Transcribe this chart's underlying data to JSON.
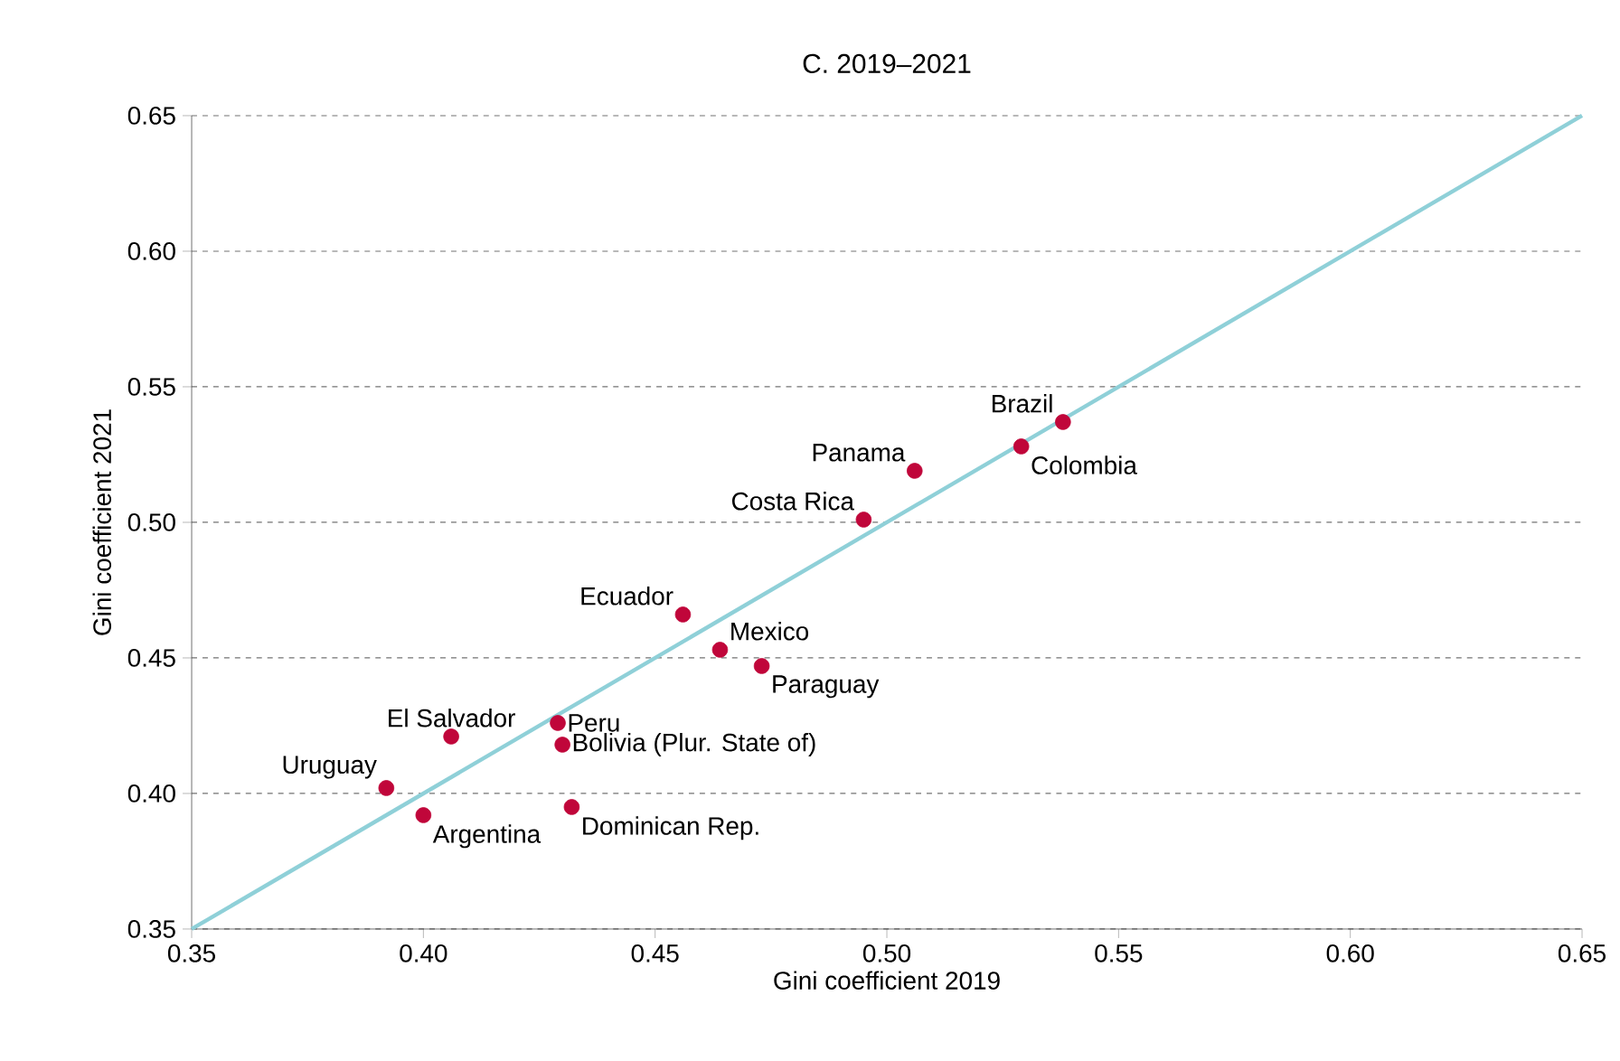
{
  "chart_data": {
    "type": "scatter",
    "title": "C. 2019–2021",
    "xlabel": "Gini coefficient 2019",
    "ylabel": "Gini coefficient 2021",
    "xlim": [
      0.35,
      0.65
    ],
    "ylim": [
      0.35,
      0.65
    ],
    "xticks": [
      {
        "value": 0.35,
        "label": "0.35"
      },
      {
        "value": 0.4,
        "label": "0.40"
      },
      {
        "value": 0.45,
        "label": "0.45"
      },
      {
        "value": 0.5,
        "label": "0.50"
      },
      {
        "value": 0.55,
        "label": "0.55"
      },
      {
        "value": 0.6,
        "label": "0.60"
      },
      {
        "value": 0.65,
        "label": "0.65"
      }
    ],
    "yticks": [
      {
        "value": 0.35,
        "label": "0.35"
      },
      {
        "value": 0.4,
        "label": "0.40"
      },
      {
        "value": 0.45,
        "label": "0.45"
      },
      {
        "value": 0.5,
        "label": "0.50"
      },
      {
        "value": 0.55,
        "label": "0.55"
      },
      {
        "value": 0.6,
        "label": "0.60"
      },
      {
        "value": 0.65,
        "label": "0.65"
      }
    ],
    "grid": "y",
    "series": [
      {
        "type": "line",
        "color": "#8fd0d8",
        "x": [
          0.35,
          0.65
        ],
        "values": [
          0.35,
          0.65
        ]
      },
      {
        "type": "scatter",
        "marker": "circle",
        "color": "#c0063a",
        "x": [
          0.392,
          0.4,
          0.406,
          0.429,
          0.43,
          0.432,
          0.456,
          0.464,
          0.473,
          0.495,
          0.506,
          0.529,
          0.538
        ],
        "values": [
          0.402,
          0.392,
          0.421,
          0.426,
          0.418,
          0.395,
          0.466,
          0.453,
          0.447,
          0.501,
          0.519,
          0.528,
          0.537
        ]
      }
    ],
    "annotations": [
      {
        "text": "Uruguay",
        "x": 0.392,
        "y": 0.402
      },
      {
        "text": "Argentina",
        "x": 0.4,
        "y": 0.392
      },
      {
        "text": "El Salvador",
        "x": 0.406,
        "y": 0.421
      },
      {
        "text": "Peru",
        "x": 0.429,
        "y": 0.426
      },
      {
        "text": "Bolivia (Plur. State of)",
        "x": 0.43,
        "y": 0.418
      },
      {
        "text": "Dominican Rep.",
        "x": 0.432,
        "y": 0.395
      },
      {
        "text": "Ecuador",
        "x": 0.456,
        "y": 0.466
      },
      {
        "text": "Mexico",
        "x": 0.464,
        "y": 0.453
      },
      {
        "text": "Paraguay",
        "x": 0.473,
        "y": 0.447
      },
      {
        "text": "Costa Rica",
        "x": 0.495,
        "y": 0.501
      },
      {
        "text": "Panama",
        "x": 0.506,
        "y": 0.519
      },
      {
        "text": "Colombia",
        "x": 0.529,
        "y": 0.528
      },
      {
        "text": "Brazil",
        "x": 0.538,
        "y": 0.537
      }
    ]
  }
}
